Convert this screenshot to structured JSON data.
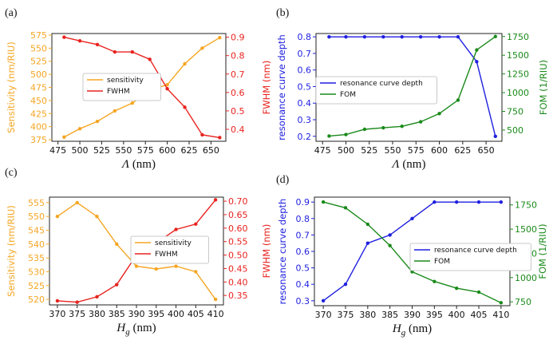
{
  "chart_data": [
    {
      "id": "a",
      "panel_label": "(a)",
      "type": "line",
      "x": [
        482,
        500,
        520,
        540,
        560,
        580,
        600,
        620,
        640,
        660
      ],
      "xlim": [
        468,
        667
      ],
      "xticks": [
        475,
        500,
        525,
        550,
        575,
        600,
        625,
        650
      ],
      "xlabel": "Λ",
      "xlabel_unit": " (nm)",
      "xlabel_italic": true,
      "left_axis": {
        "label": "Sensitivity (nm/RIU)",
        "color": "#f5a623",
        "ylim": [
          372,
          578
        ],
        "ticks": [
          375,
          400,
          425,
          450,
          475,
          500,
          525,
          550,
          575
        ]
      },
      "right_axis": {
        "label": "FWHM (nm)",
        "color": "#e8231f",
        "ylim": [
          0.335,
          0.92
        ],
        "ticks": [
          0.4,
          0.5,
          0.6,
          0.7,
          0.8,
          0.9
        ],
        "tick_labels": [
          "0.4",
          "0.5",
          "0.6",
          "0.7",
          "0.8",
          "0.9"
        ]
      },
      "series": [
        {
          "name": "sensitivity",
          "axis": "left",
          "color": "#f5a623",
          "values": [
            380,
            396,
            410,
            430,
            445,
            470,
            480,
            520,
            550,
            570
          ]
        },
        {
          "name": "FWHM",
          "axis": "right",
          "color": "#e8231f",
          "values": [
            0.9,
            0.88,
            0.86,
            0.82,
            0.82,
            0.78,
            0.62,
            0.52,
            0.37,
            0.355
          ]
        }
      ],
      "legend_position": "center-left"
    },
    {
      "id": "b",
      "panel_label": "(b)",
      "type": "line",
      "x": [
        482,
        500,
        520,
        540,
        560,
        580,
        600,
        620,
        640,
        660
      ],
      "xlim": [
        468,
        667
      ],
      "xticks": [
        475,
        500,
        525,
        550,
        575,
        600,
        625,
        650
      ],
      "xlabel": "Λ",
      "xlabel_unit": " (nm)",
      "xlabel_italic": true,
      "left_axis": {
        "label": "resonance curve depth",
        "color": "#1f1fe0",
        "ylim": [
          0.17,
          0.82
        ],
        "ticks": [
          0.2,
          0.3,
          0.4,
          0.5,
          0.6,
          0.7,
          0.8
        ],
        "tick_labels": [
          "0.2",
          "0.3",
          "0.4",
          "0.5",
          "0.6",
          "0.7",
          "0.8"
        ]
      },
      "right_axis": {
        "label": "FOM (1/RIU)",
        "color": "#1a8a1a",
        "ylim": [
          350,
          1790
        ],
        "ticks": [
          500,
          750,
          1000,
          1250,
          1500,
          1750
        ]
      },
      "series": [
        {
          "name": "resonance curve depth",
          "axis": "left",
          "color": "#1f1fe0",
          "values": [
            0.8,
            0.8,
            0.8,
            0.8,
            0.8,
            0.8,
            0.8,
            0.8,
            0.65,
            0.2
          ]
        },
        {
          "name": "FOM",
          "axis": "right",
          "color": "#1a8a1a",
          "values": [
            420,
            440,
            510,
            530,
            550,
            610,
            720,
            900,
            1570,
            1750
          ]
        }
      ],
      "legend_position": "center-left"
    },
    {
      "id": "c",
      "panel_label": "(c)",
      "type": "line",
      "x": [
        370,
        375,
        380,
        385,
        390,
        395,
        400,
        405,
        410
      ],
      "xlim": [
        368,
        412
      ],
      "xticks": [
        370,
        375,
        380,
        385,
        390,
        395,
        400,
        405,
        410
      ],
      "xlabel": "H",
      "xlabel_sub": "g",
      "xlabel_unit": " (nm)",
      "xlabel_italic": true,
      "left_axis": {
        "label": "Sensitivity (nm/RIU)",
        "color": "#f5a623",
        "ylim": [
          518,
          557
        ],
        "ticks": [
          520,
          525,
          530,
          535,
          540,
          545,
          550,
          555
        ]
      },
      "right_axis": {
        "label": "FWHM (nm)",
        "color": "#e8231f",
        "ylim": [
          0.315,
          0.715
        ],
        "ticks": [
          0.35,
          0.4,
          0.45,
          0.5,
          0.55,
          0.6,
          0.65,
          0.7
        ],
        "tick_labels": [
          "0.35",
          "0.40",
          "0.45",
          "0.50",
          "0.55",
          "0.60",
          "0.65",
          "0.70"
        ]
      },
      "series": [
        {
          "name": "sensitivity",
          "axis": "left",
          "color": "#f5a623",
          "values": [
            550,
            555,
            550,
            540,
            532,
            531,
            532,
            530,
            520
          ]
        },
        {
          "name": "FWHM",
          "axis": "right",
          "color": "#e8231f",
          "values": [
            0.33,
            0.325,
            0.345,
            0.39,
            0.5,
            0.545,
            0.595,
            0.615,
            0.705
          ]
        }
      ],
      "legend_position": "center-right"
    },
    {
      "id": "d",
      "panel_label": "(d)",
      "type": "line",
      "x": [
        370,
        375,
        380,
        385,
        390,
        395,
        400,
        405,
        410
      ],
      "xlim": [
        368,
        412
      ],
      "xticks": [
        370,
        375,
        380,
        385,
        390,
        395,
        400,
        405,
        410
      ],
      "xlabel": "H",
      "xlabel_sub": "g",
      "xlabel_unit": " (nm)",
      "xlabel_italic": true,
      "left_axis": {
        "label": "resonance curve depth",
        "color": "#1f1fe0",
        "ylim": [
          0.27,
          0.93
        ],
        "ticks": [
          0.3,
          0.4,
          0.5,
          0.6,
          0.7,
          0.8,
          0.9
        ],
        "tick_labels": [
          "0.3",
          "0.4",
          "0.5",
          "0.6",
          "0.7",
          "0.8",
          "0.9"
        ]
      },
      "right_axis": {
        "label": "FOM (1/RIU)",
        "color": "#1a8a1a",
        "ylim": [
          710,
          1830
        ],
        "ticks": [
          750,
          1000,
          1250,
          1500,
          1750
        ]
      },
      "series": [
        {
          "name": "resonance curve depth",
          "axis": "left",
          "color": "#1f1fe0",
          "values": [
            0.3,
            0.4,
            0.65,
            0.7,
            0.8,
            0.9,
            0.9,
            0.9,
            0.9
          ]
        },
        {
          "name": "FOM",
          "axis": "right",
          "color": "#1a8a1a",
          "values": [
            1780,
            1720,
            1550,
            1330,
            1060,
            960,
            890,
            850,
            740
          ]
        }
      ],
      "legend_position": "center-right"
    }
  ]
}
